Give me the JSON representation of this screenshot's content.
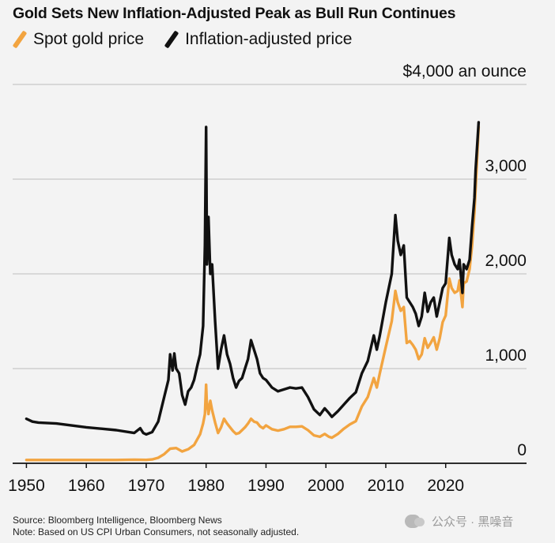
{
  "title": "Gold Sets New Inflation-Adjusted Peak as Bull Run Continues",
  "legend": [
    {
      "label": "Spot gold price",
      "color": "#f2a440"
    },
    {
      "label": "Inflation-adjusted price",
      "color": "#111111"
    }
  ],
  "footer": {
    "source": "Source: Bloomberg Intelligence, Bloomberg News",
    "note": "Note: Based on US CPI Urban Consumers, not seasonally adjusted."
  },
  "watermark": "公众号 · 黑噪音",
  "chart_data": {
    "type": "line",
    "title": "Gold Sets New Inflation-Adjusted Peak as Bull Run Continues",
    "y_unit_label": "$4,000 an ounce",
    "ylim": [
      0,
      4000
    ],
    "y_ticks": [
      {
        "value": 4000,
        "label": "$4,000 an ounce"
      },
      {
        "value": 3000,
        "label": "3,000"
      },
      {
        "value": 2000,
        "label": "2,000"
      },
      {
        "value": 1000,
        "label": "1,000"
      },
      {
        "value": 0,
        "label": "0"
      }
    ],
    "xlim": [
      1947.7,
      2033.5
    ],
    "x_ticks": [
      {
        "value": 1950,
        "label": "1950"
      },
      {
        "value": 1960,
        "label": "1960"
      },
      {
        "value": 1970,
        "label": "1970"
      },
      {
        "value": 1980,
        "label": "1980"
      },
      {
        "value": 1990,
        "label": "1990"
      },
      {
        "value": 2000,
        "label": "2000"
      },
      {
        "value": 2010,
        "label": "2010"
      },
      {
        "value": 2020,
        "label": "2020"
      }
    ],
    "grid": true,
    "legend_position": "top-left",
    "series": [
      {
        "name": "Spot gold price",
        "color": "#f2a440",
        "points": [
          [
            1950,
            35
          ],
          [
            1955,
            35
          ],
          [
            1960,
            35
          ],
          [
            1965,
            35
          ],
          [
            1968,
            38
          ],
          [
            1970,
            36
          ],
          [
            1971,
            41
          ],
          [
            1972,
            58
          ],
          [
            1973,
            97
          ],
          [
            1974,
            154
          ],
          [
            1975,
            161
          ],
          [
            1976,
            125
          ],
          [
            1977,
            148
          ],
          [
            1978,
            193
          ],
          [
            1979,
            307
          ],
          [
            1979.5,
            420
          ],
          [
            1979.8,
            520
          ],
          [
            1980.0,
            830
          ],
          [
            1980.1,
            660
          ],
          [
            1980.4,
            520
          ],
          [
            1980.7,
            660
          ],
          [
            1981.0,
            560
          ],
          [
            1981.5,
            430
          ],
          [
            1982.0,
            320
          ],
          [
            1982.5,
            380
          ],
          [
            1983.0,
            470
          ],
          [
            1983.5,
            420
          ],
          [
            1984.0,
            380
          ],
          [
            1984.5,
            340
          ],
          [
            1985.0,
            310
          ],
          [
            1985.5,
            320
          ],
          [
            1986.0,
            350
          ],
          [
            1986.5,
            380
          ],
          [
            1987.0,
            420
          ],
          [
            1987.5,
            470
          ],
          [
            1988.0,
            440
          ],
          [
            1988.5,
            430
          ],
          [
            1989.0,
            390
          ],
          [
            1989.5,
            370
          ],
          [
            1990.0,
            400
          ],
          [
            1991.0,
            360
          ],
          [
            1992.0,
            345
          ],
          [
            1993.0,
            360
          ],
          [
            1994.0,
            385
          ],
          [
            1995.0,
            385
          ],
          [
            1996.0,
            390
          ],
          [
            1997.0,
            350
          ],
          [
            1998.0,
            295
          ],
          [
            1999.0,
            280
          ],
          [
            1999.8,
            310
          ],
          [
            2000.5,
            280
          ],
          [
            2001.0,
            270
          ],
          [
            2002.0,
            310
          ],
          [
            2003.0,
            365
          ],
          [
            2004.0,
            410
          ],
          [
            2005.0,
            445
          ],
          [
            2006.0,
            600
          ],
          [
            2007.0,
            700
          ],
          [
            2008.0,
            900
          ],
          [
            2008.5,
            800
          ],
          [
            2009.0,
            950
          ],
          [
            2010.0,
            1230
          ],
          [
            2011.0,
            1500
          ],
          [
            2011.6,
            1820
          ],
          [
            2012.0,
            1700
          ],
          [
            2012.5,
            1610
          ],
          [
            2013.0,
            1650
          ],
          [
            2013.5,
            1270
          ],
          [
            2014.0,
            1290
          ],
          [
            2014.5,
            1250
          ],
          [
            2015.0,
            1200
          ],
          [
            2015.5,
            1100
          ],
          [
            2016.0,
            1150
          ],
          [
            2016.5,
            1320
          ],
          [
            2017.0,
            1220
          ],
          [
            2017.5,
            1270
          ],
          [
            2018.0,
            1330
          ],
          [
            2018.5,
            1200
          ],
          [
            2019.0,
            1320
          ],
          [
            2019.5,
            1490
          ],
          [
            2020.0,
            1560
          ],
          [
            2020.6,
            1950
          ],
          [
            2021.0,
            1850
          ],
          [
            2021.5,
            1800
          ],
          [
            2022.0,
            1820
          ],
          [
            2022.3,
            1930
          ],
          [
            2022.8,
            1650
          ],
          [
            2023.0,
            1900
          ],
          [
            2023.5,
            1920
          ],
          [
            2024.0,
            2050
          ],
          [
            2024.4,
            2300
          ],
          [
            2024.8,
            2650
          ],
          [
            2025.0,
            2900
          ],
          [
            2025.3,
            3300
          ],
          [
            2025.5,
            3550
          ]
        ]
      },
      {
        "name": "Inflation-adjusted price",
        "color": "#111111",
        "points": [
          [
            1950,
            470
          ],
          [
            1951,
            440
          ],
          [
            1952,
            430
          ],
          [
            1955,
            420
          ],
          [
            1960,
            380
          ],
          [
            1965,
            350
          ],
          [
            1968,
            320
          ],
          [
            1969,
            370
          ],
          [
            1969.5,
            320
          ],
          [
            1970,
            305
          ],
          [
            1971,
            330
          ],
          [
            1972,
            440
          ],
          [
            1973,
            700
          ],
          [
            1973.7,
            880
          ],
          [
            1974.0,
            1150
          ],
          [
            1974.4,
            980
          ],
          [
            1974.7,
            1160
          ],
          [
            1975.0,
            1000
          ],
          [
            1975.5,
            950
          ],
          [
            1976.0,
            720
          ],
          [
            1976.5,
            620
          ],
          [
            1977.0,
            760
          ],
          [
            1977.5,
            800
          ],
          [
            1978.0,
            880
          ],
          [
            1978.6,
            1050
          ],
          [
            1979.0,
            1150
          ],
          [
            1979.5,
            1450
          ],
          [
            1979.8,
            2300
          ],
          [
            1980.0,
            3550
          ],
          [
            1980.15,
            2100
          ],
          [
            1980.4,
            2600
          ],
          [
            1980.7,
            2000
          ],
          [
            1981.0,
            2100
          ],
          [
            1981.5,
            1500
          ],
          [
            1982.0,
            1000
          ],
          [
            1982.5,
            1200
          ],
          [
            1983.0,
            1350
          ],
          [
            1983.5,
            1150
          ],
          [
            1984.0,
            1050
          ],
          [
            1984.5,
            900
          ],
          [
            1985.0,
            800
          ],
          [
            1985.5,
            870
          ],
          [
            1986.0,
            900
          ],
          [
            1986.5,
            1000
          ],
          [
            1987.0,
            1100
          ],
          [
            1987.5,
            1300
          ],
          [
            1988.0,
            1200
          ],
          [
            1988.5,
            1100
          ],
          [
            1989.0,
            950
          ],
          [
            1989.5,
            900
          ],
          [
            1990.0,
            880
          ],
          [
            1991.0,
            800
          ],
          [
            1992.0,
            760
          ],
          [
            1993.0,
            780
          ],
          [
            1994.0,
            800
          ],
          [
            1995.0,
            790
          ],
          [
            1996.0,
            800
          ],
          [
            1997.0,
            700
          ],
          [
            1998.0,
            570
          ],
          [
            1999.0,
            510
          ],
          [
            1999.8,
            580
          ],
          [
            2000.5,
            530
          ],
          [
            2001.0,
            490
          ],
          [
            2002.0,
            550
          ],
          [
            2003.0,
            620
          ],
          [
            2004.0,
            690
          ],
          [
            2005.0,
            750
          ],
          [
            2006.0,
            950
          ],
          [
            2007.0,
            1080
          ],
          [
            2008.0,
            1350
          ],
          [
            2008.5,
            1200
          ],
          [
            2009.0,
            1350
          ],
          [
            2010.0,
            1700
          ],
          [
            2011.0,
            2000
          ],
          [
            2011.6,
            2620
          ],
          [
            2012.0,
            2350
          ],
          [
            2012.5,
            2200
          ],
          [
            2013.0,
            2300
          ],
          [
            2013.5,
            1750
          ],
          [
            2014.0,
            1700
          ],
          [
            2014.5,
            1650
          ],
          [
            2015.0,
            1580
          ],
          [
            2015.5,
            1450
          ],
          [
            2016.0,
            1550
          ],
          [
            2016.5,
            1800
          ],
          [
            2017.0,
            1600
          ],
          [
            2017.5,
            1700
          ],
          [
            2018.0,
            1750
          ],
          [
            2018.5,
            1550
          ],
          [
            2019.0,
            1700
          ],
          [
            2019.5,
            1850
          ],
          [
            2020.0,
            1900
          ],
          [
            2020.6,
            2380
          ],
          [
            2021.0,
            2200
          ],
          [
            2021.5,
            2100
          ],
          [
            2022.0,
            2050
          ],
          [
            2022.3,
            2150
          ],
          [
            2022.8,
            1800
          ],
          [
            2023.0,
            2100
          ],
          [
            2023.5,
            2050
          ],
          [
            2024.0,
            2150
          ],
          [
            2024.4,
            2500
          ],
          [
            2024.8,
            2800
          ],
          [
            2025.0,
            3100
          ],
          [
            2025.3,
            3400
          ],
          [
            2025.5,
            3600
          ]
        ]
      }
    ]
  }
}
